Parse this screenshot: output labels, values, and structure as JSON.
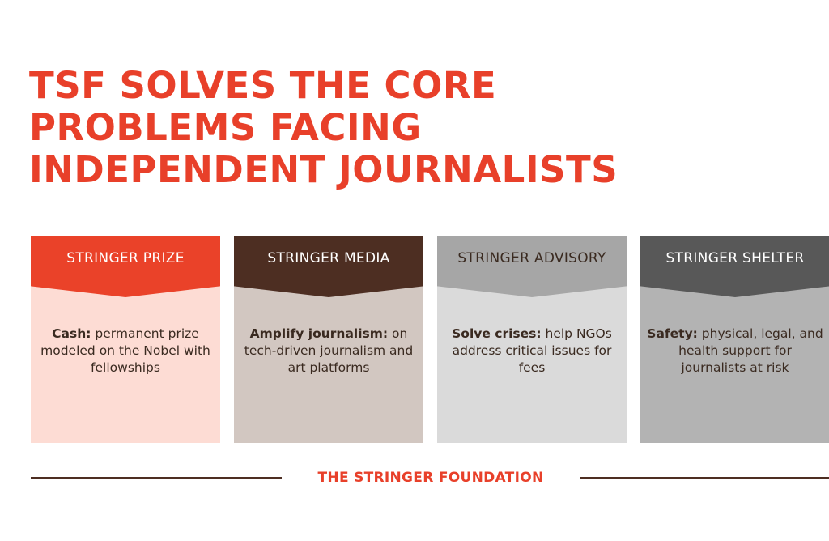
{
  "headline": {
    "line1": "TSF SOLVES THE CORE",
    "line2": "PROBLEMS FACING",
    "line3": "INDEPENDENT JOURNALISTS"
  },
  "colors": {
    "accent": "#e8402a",
    "dark_brown": "#4d2e22"
  },
  "cards": [
    {
      "title": "STRINGER PRIZE",
      "lead": "Cash:",
      "text": " permanent prize modeled on the Nobel with fellowships",
      "header_color": "#ea4229",
      "header_text_color": "#ffffff",
      "body_color": "#fddcd4"
    },
    {
      "title": "STRINGER MEDIA",
      "lead": "Amplify journalism:",
      "text": " on tech-driven journalism and art platforms",
      "header_color": "#4d2e22",
      "header_text_color": "#ffffff",
      "body_color": "#d2c7c1"
    },
    {
      "title": "STRINGER ADVISORY",
      "lead": "Solve crises:",
      "text": " help NGOs address critical issues for fees",
      "header_color": "#a6a6a6",
      "header_text_color": "#3a2a20",
      "body_color": "#dadada"
    },
    {
      "title": "STRINGER SHELTER",
      "lead": "Safety:",
      "text": " physical, legal, and health support for journalists at risk",
      "header_color": "#585858",
      "header_text_color": "#ffffff",
      "body_color": "#b3b3b3"
    }
  ],
  "footer": {
    "label": "THE STRINGER FOUNDATION"
  }
}
